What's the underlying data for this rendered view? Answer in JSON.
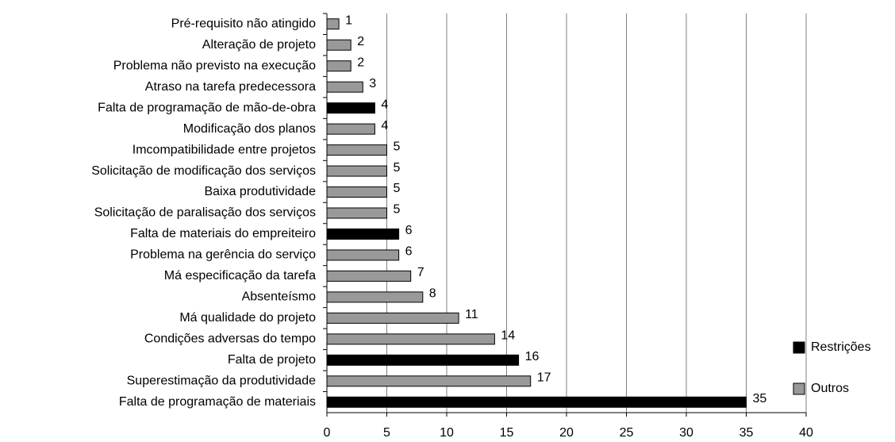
{
  "chart_data": {
    "type": "barh",
    "categories": [
      "Pré-requisito não atingido",
      "Alteração de projeto",
      "Problema não previsto na execução",
      "Atraso na tarefa predecessora",
      "Falta de programação de mão-de-obra",
      "Modificação dos planos",
      "Imcompatibilidade entre projetos",
      "Solicitação de modificação dos serviços",
      "Baixa produtividade",
      "Solicitação de paralisação dos serviços",
      "Falta de materiais do empreiteiro",
      "Problema na gerência do serviço",
      "Má especificação da tarefa",
      "Absenteísmo",
      "Má qualidade do projeto",
      "Condições adversas do tempo",
      "Falta de projeto",
      "Superestimação da produtividade",
      "Falta de programação de materiais"
    ],
    "series": [
      {
        "name": "Restrições",
        "color": "#000000",
        "values": [
          null,
          null,
          null,
          null,
          4,
          null,
          null,
          null,
          null,
          null,
          6,
          null,
          null,
          null,
          null,
          null,
          16,
          null,
          35
        ]
      },
      {
        "name": "Outros",
        "color": "#999999",
        "values": [
          1,
          2,
          2,
          3,
          null,
          4,
          5,
          5,
          5,
          5,
          null,
          6,
          7,
          8,
          11,
          14,
          null,
          17,
          null
        ]
      }
    ],
    "xlim": [
      0,
      40
    ],
    "xticks": [
      0,
      5,
      10,
      15,
      20,
      25,
      30,
      35,
      40
    ],
    "grid": true,
    "legend": "lower right"
  }
}
